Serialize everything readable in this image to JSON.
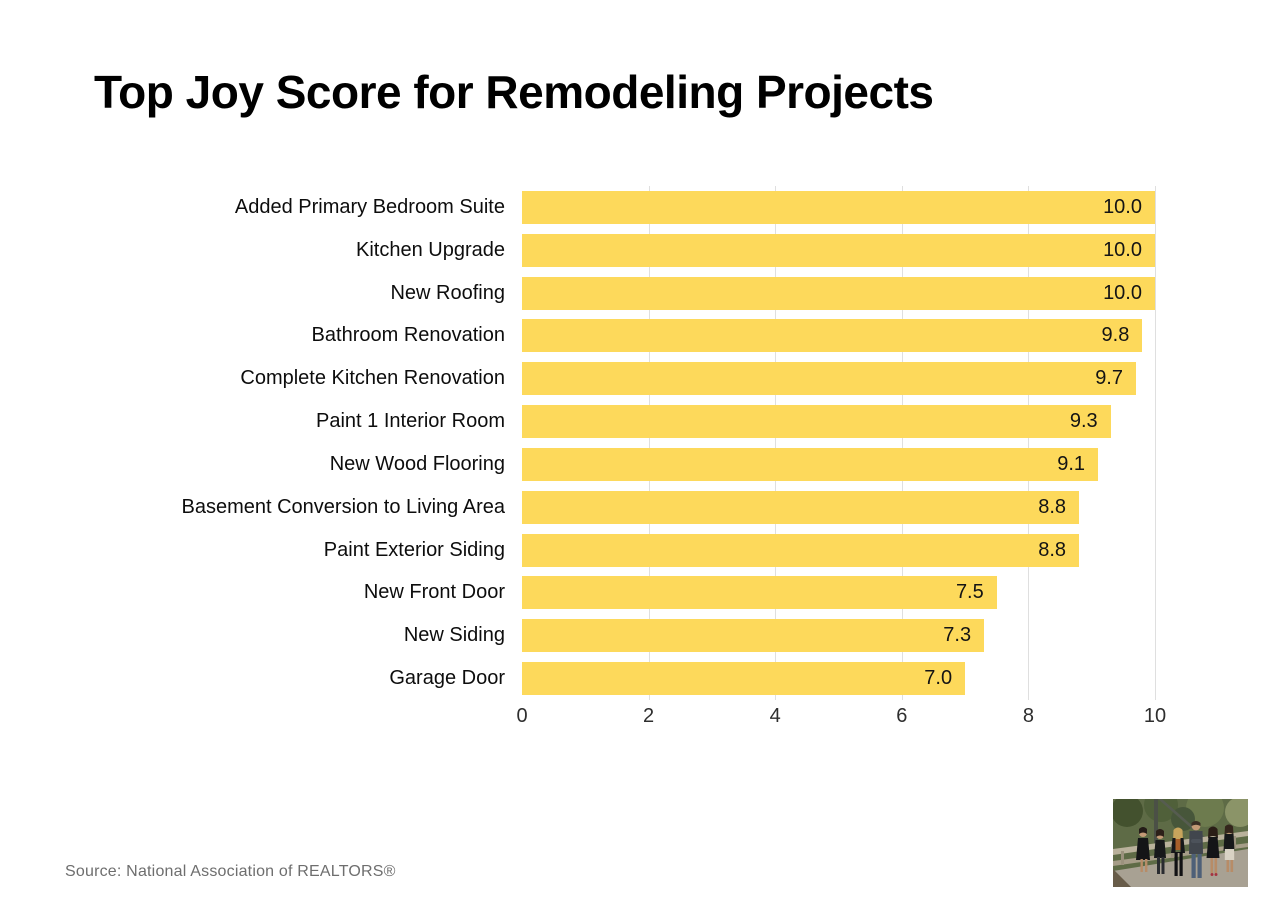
{
  "title": "Top Joy Score for Remodeling Projects",
  "source": "Source: National Association of REALTORS®",
  "colors": {
    "bar": "#FDD95B",
    "grid": "#DFDFDF",
    "title_text": "#000000",
    "label_text": "#0D0D0D",
    "value_text": "#141414",
    "tick_text": "#2E2E2E",
    "source_text": "#6E6E6E",
    "background": "#FFFFFF"
  },
  "chart_data": {
    "type": "bar",
    "orientation": "horizontal",
    "title": "Top Joy Score for Remodeling Projects",
    "categories": [
      "Added Primary Bedroom Suite",
      "Kitchen Upgrade",
      "New Roofing",
      "Bathroom Renovation",
      "Complete Kitchen Renovation",
      "Paint 1 Interior Room",
      "New Wood Flooring",
      "Basement Conversion to Living Area",
      "Paint Exterior Siding",
      "New Front Door",
      "New Siding",
      "Garage Door"
    ],
    "values": [
      10.0,
      10.0,
      10.0,
      9.8,
      9.7,
      9.3,
      9.1,
      8.8,
      8.8,
      7.5,
      7.3,
      7.0
    ],
    "value_labels": [
      "10.0",
      "10.0",
      "10.0",
      "9.8",
      "9.7",
      "9.3",
      "9.1",
      "8.8",
      "8.8",
      "7.5",
      "7.3",
      "7.0"
    ],
    "xlabel": "",
    "ylabel": "",
    "xlim": [
      0,
      10
    ],
    "x_ticks": [
      0,
      2,
      4,
      6,
      8,
      10
    ],
    "x_tick_labels": [
      "0",
      "2",
      "4",
      "6",
      "8",
      "10"
    ],
    "grid": true,
    "legend": false
  },
  "photo": {
    "alt": "team-photo"
  }
}
